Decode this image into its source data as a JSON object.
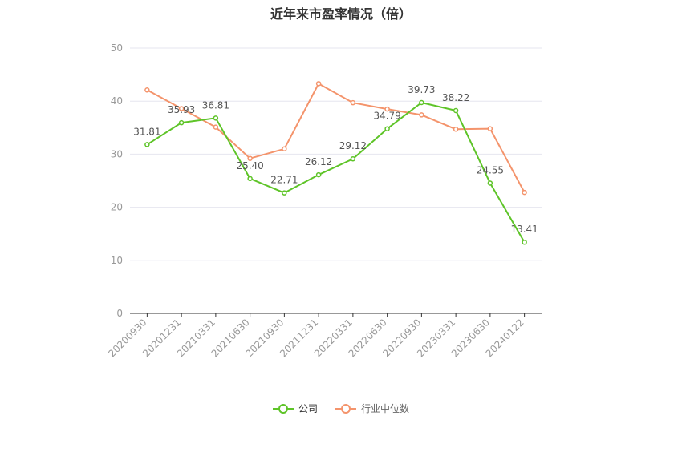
{
  "chart_data": {
    "type": "line",
    "title": "近年来市盈率情况（倍）",
    "categories": [
      "20200930",
      "20201231",
      "20210331",
      "20210630",
      "20210930",
      "20211231",
      "20220331",
      "20220630",
      "20220930",
      "20230331",
      "20230630",
      "20240122"
    ],
    "ylim": [
      0,
      50
    ],
    "yticks": [
      0,
      10,
      20,
      30,
      40,
      50
    ],
    "grid": true,
    "legend_position": "bottom",
    "series": [
      {
        "name": "公司",
        "color": "#5ec428",
        "show_labels": true,
        "values": [
          31.81,
          35.93,
          36.81,
          25.4,
          22.71,
          26.12,
          29.12,
          34.79,
          39.73,
          38.22,
          24.55,
          13.41
        ],
        "labels": [
          "31.81",
          "35.93",
          "36.81",
          "25.40",
          "22.71",
          "26.12",
          "29.12",
          "34.79",
          "39.73",
          "38.22",
          "24.55",
          "13.41"
        ]
      },
      {
        "name": "行业中位数",
        "color": "#f4946c",
        "show_labels": false,
        "values": [
          42.1,
          38.6,
          35.1,
          29.2,
          31.0,
          43.3,
          39.7,
          38.5,
          37.4,
          34.7,
          34.8,
          22.8
        ]
      }
    ]
  }
}
